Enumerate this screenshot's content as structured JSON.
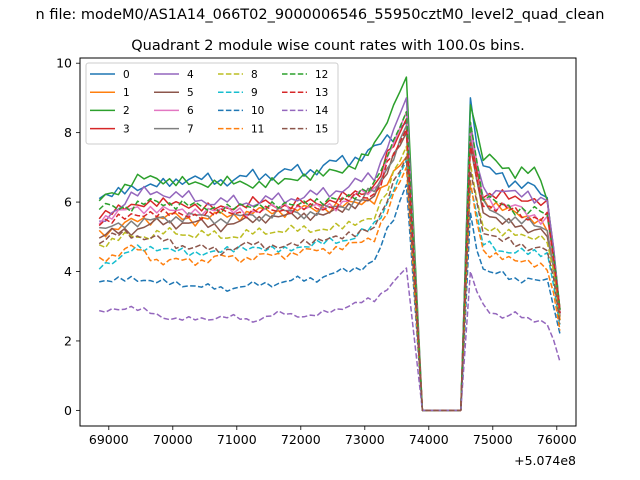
{
  "figure": {
    "suptitle": "n file: modeM0/AS1A14_066T02_9000006546_55950cztM0_level2_quad_clean",
    "offset_text": "+5.074e8"
  },
  "chart_data": {
    "type": "line",
    "title": "Quadrant 2 module wise count rates with 100.0s bins.",
    "xlabel": "",
    "ylabel": "",
    "xlim": [
      68550,
      76300
    ],
    "ylim": [
      -0.45,
      10.15
    ],
    "xticks": [
      69000,
      70000,
      71000,
      72000,
      73000,
      74000,
      75000,
      76000
    ],
    "xtick_labels": [
      "69000",
      "70000",
      "71000",
      "72000",
      "73000",
      "74000",
      "75000",
      "76000"
    ],
    "yticks": [
      0,
      2,
      4,
      6,
      8,
      10
    ],
    "ytick_labels": [
      "0",
      "2",
      "4",
      "6",
      "8",
      "10"
    ],
    "gap": {
      "drop_start": 73700,
      "drop_end": 73900,
      "rise_start": 74500,
      "rise_end": 74650
    },
    "legend": {
      "position": "top-left",
      "columns": 4
    },
    "series": [
      {
        "name": "0",
        "color": "#1f77b4",
        "dash": "solid",
        "segment1": [
          6.1,
          6.4,
          6.5,
          6.7,
          6.6,
          6.75,
          6.85,
          6.95,
          7.2,
          7.5,
          8.3
        ],
        "segment2": [
          9.0,
          7.0,
          6.8,
          6.7,
          6.6,
          6.5,
          6.3,
          6.0,
          2.8
        ]
      },
      {
        "name": "1",
        "color": "#ff7f0e",
        "dash": "solid",
        "segment1": [
          5.1,
          5.4,
          5.6,
          5.5,
          5.6,
          5.7,
          5.75,
          5.8,
          5.9,
          6.1,
          7.3
        ],
        "segment2": [
          8.2,
          6.1,
          5.9,
          5.8,
          5.7,
          5.55,
          5.5,
          5.2,
          2.6
        ]
      },
      {
        "name": "2",
        "color": "#2ca02c",
        "dash": "solid",
        "segment1": [
          6.0,
          6.6,
          6.7,
          6.5,
          6.6,
          6.5,
          6.6,
          6.8,
          6.9,
          7.6,
          9.6
        ],
        "segment2": [
          8.8,
          7.3,
          7.2,
          7.0,
          6.9,
          6.9,
          6.8,
          6.0,
          2.9
        ]
      },
      {
        "name": "3",
        "color": "#d62728",
        "dash": "solid",
        "segment1": [
          5.6,
          5.9,
          6.0,
          5.9,
          5.8,
          6.0,
          5.9,
          6.0,
          6.1,
          6.5,
          8.4
        ],
        "segment2": [
          8.0,
          6.3,
          6.2,
          6.1,
          6.1,
          6.2,
          6.0,
          5.8,
          2.9
        ]
      },
      {
        "name": "4",
        "color": "#9467bd",
        "dash": "solid",
        "segment1": [
          5.3,
          6.2,
          6.3,
          6.1,
          6.0,
          6.0,
          6.1,
          6.2,
          6.4,
          6.8,
          9.0
        ],
        "segment2": [
          8.3,
          6.3,
          6.3,
          6.4,
          6.2,
          6.2,
          6.1,
          6.1,
          2.8
        ]
      },
      {
        "name": "5",
        "color": "#8c564b",
        "dash": "solid",
        "segment1": [
          5.0,
          5.2,
          5.4,
          5.4,
          5.3,
          5.5,
          5.6,
          5.6,
          5.8,
          6.2,
          8.0
        ],
        "segment2": [
          7.6,
          5.8,
          5.5,
          5.4,
          5.4,
          5.2,
          5.2,
          5.0,
          2.7
        ]
      },
      {
        "name": "6",
        "color": "#e377c2",
        "dash": "solid",
        "segment1": [
          5.5,
          5.8,
          5.8,
          5.7,
          5.8,
          5.7,
          5.9,
          5.8,
          6.0,
          6.4,
          8.6
        ],
        "segment2": [
          8.0,
          6.2,
          6.0,
          5.9,
          5.8,
          5.7,
          5.6,
          5.5,
          2.8
        ]
      },
      {
        "name": "7",
        "color": "#7f7f7f",
        "dash": "solid",
        "segment1": [
          5.2,
          5.4,
          5.5,
          5.6,
          5.5,
          5.6,
          5.7,
          5.7,
          5.9,
          6.3,
          8.2
        ],
        "segment2": [
          7.8,
          5.9,
          5.7,
          5.6,
          5.5,
          5.4,
          5.3,
          5.2,
          2.8
        ]
      },
      {
        "name": "8",
        "color": "#bcbd22",
        "dash": "dashed",
        "segment1": [
          4.8,
          5.0,
          5.1,
          5.1,
          5.0,
          5.1,
          5.2,
          5.2,
          5.3,
          5.6,
          7.6
        ],
        "segment2": [
          7.1,
          5.3,
          5.2,
          5.1,
          5.1,
          5.0,
          5.0,
          4.9,
          2.6
        ]
      },
      {
        "name": "9",
        "color": "#17becf",
        "dash": "dashed",
        "segment1": [
          4.1,
          4.6,
          4.7,
          4.5,
          4.6,
          4.7,
          4.6,
          4.8,
          4.9,
          5.3,
          7.2
        ],
        "segment2": [
          6.5,
          4.8,
          4.7,
          4.6,
          4.6,
          4.5,
          4.5,
          4.6,
          2.4
        ]
      },
      {
        "name": "10",
        "color": "#1f77b4",
        "dash": "dashed",
        "segment1": [
          3.7,
          3.8,
          3.7,
          3.6,
          3.5,
          3.6,
          3.7,
          3.8,
          4.0,
          4.3,
          6.5
        ],
        "segment2": [
          5.7,
          4.1,
          3.9,
          3.9,
          3.8,
          3.8,
          3.7,
          3.7,
          2.2
        ]
      },
      {
        "name": "11",
        "color": "#ff7f0e",
        "dash": "dashed",
        "segment1": [
          4.3,
          4.7,
          4.3,
          4.3,
          4.4,
          4.4,
          4.5,
          4.6,
          4.7,
          5.0,
          7.0
        ],
        "segment2": [
          6.6,
          4.6,
          4.5,
          4.4,
          4.3,
          4.3,
          4.2,
          4.1,
          2.3
        ]
      },
      {
        "name": "12",
        "color": "#2ca02c",
        "dash": "dashed",
        "segment1": [
          5.8,
          5.9,
          6.0,
          5.9,
          5.8,
          5.9,
          5.9,
          6.0,
          6.1,
          6.5,
          8.6
        ],
        "segment2": [
          8.3,
          6.2,
          6.0,
          5.9,
          5.8,
          5.8,
          5.7,
          5.6,
          2.9
        ]
      },
      {
        "name": "13",
        "color": "#d62728",
        "dash": "dashed",
        "segment1": [
          5.4,
          5.6,
          5.7,
          5.6,
          5.7,
          5.7,
          5.8,
          5.8,
          6.0,
          6.3,
          8.1
        ],
        "segment2": [
          7.7,
          6.0,
          5.9,
          5.8,
          5.7,
          5.6,
          5.6,
          5.5,
          2.8
        ]
      },
      {
        "name": "14",
        "color": "#9467bd",
        "dash": "dashed",
        "segment1": [
          2.8,
          3.0,
          2.7,
          2.6,
          2.7,
          2.6,
          2.8,
          2.7,
          3.0,
          3.2,
          4.1
        ],
        "segment2": [
          4.0,
          3.0,
          2.8,
          2.7,
          2.8,
          2.6,
          2.6,
          2.5,
          1.4
        ]
      },
      {
        "name": "15",
        "color": "#8c564b",
        "dash": "dashed",
        "segment1": [
          4.9,
          5.1,
          4.9,
          4.7,
          4.6,
          4.8,
          4.7,
          4.9,
          5.0,
          5.3,
          7.3
        ],
        "segment2": [
          6.9,
          5.2,
          5.0,
          4.9,
          4.8,
          4.7,
          4.7,
          4.6,
          2.5
        ]
      }
    ]
  }
}
